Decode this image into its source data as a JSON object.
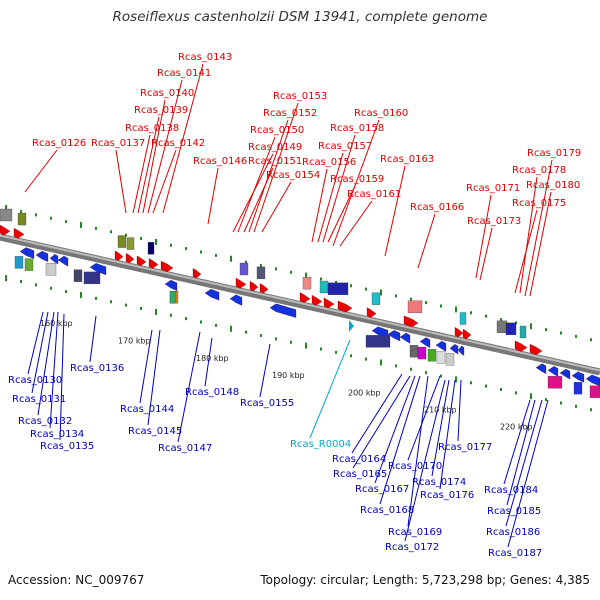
{
  "title": "Roseiflexus castenholzii DSM 13941, complete genome",
  "accession": "Accession: NC_009767",
  "topology": "Topology: circular; Length: 5,723,298 bp; Genes: 4,385",
  "colors": {
    "top_strand": "#dd0000",
    "bottom_strand": "#0000bb",
    "rna": "#00aacc",
    "backbone": "#888888",
    "tick": "#228822"
  },
  "scale_labels": [
    "160 kbp",
    "170 kbp",
    "180 kbp",
    "190 kbp",
    "200 kbp",
    "210 kbp",
    "220 kbp"
  ],
  "top_labels": [
    "Rcas_0126",
    "Rcas_0137",
    "Rcas_0138",
    "Rcas_0139",
    "Rcas_0140",
    "Rcas_0141",
    "Rcas_0142",
    "Rcas_0143",
    "Rcas_0146",
    "Rcas_0149",
    "Rcas_0150",
    "Rcas_0151",
    "Rcas_0152",
    "Rcas_0153",
    "Rcas_0154",
    "Rcas_0156",
    "Rcas_0157",
    "Rcas_0158",
    "Rcas_0159",
    "Rcas_0160",
    "Rcas_0161",
    "Rcas_0163",
    "Rcas_0166",
    "Rcas_0171",
    "Rcas_0173",
    "Rcas_0175",
    "Rcas_0178",
    "Rcas_0179",
    "Rcas_0180"
  ],
  "bottom_labels": [
    "Rcas_0130",
    "Rcas_0131",
    "Rcas_0132",
    "Rcas_0134",
    "Rcas_0135",
    "Rcas_0136",
    "Rcas_0144",
    "Rcas_0145",
    "Rcas_0147",
    "Rcas_0148",
    "Rcas_0155",
    "Rcas_R0004",
    "Rcas_0164",
    "Rcas_0165",
    "Rcas_0167",
    "Rcas_0168",
    "Rcas_0169",
    "Rcas_0170",
    "Rcas_0172",
    "Rcas_0174",
    "Rcas_0176",
    "Rcas_0177",
    "Rcas_0184",
    "Rcas_0185",
    "Rcas_0186",
    "Rcas_0187"
  ]
}
